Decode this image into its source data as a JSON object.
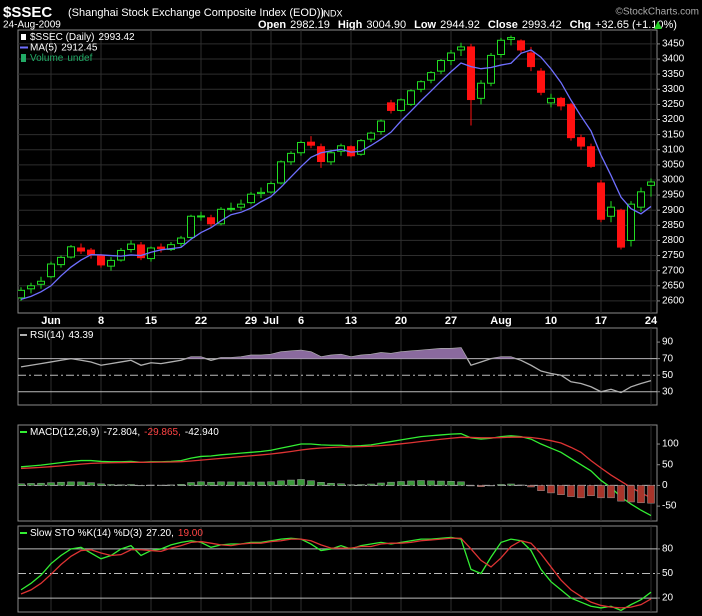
{
  "header": {
    "symbol": "$SSEC",
    "name": "(Shanghai Stock Exchange Composite Index (EOD))",
    "exchange": "INDX",
    "source": "©StockCharts.com",
    "date": "24-Aug-2009",
    "quote": [
      {
        "label": "Open",
        "value": "2982.19"
      },
      {
        "label": "High",
        "value": "3004.90"
      },
      {
        "label": "Low",
        "value": "2944.92"
      },
      {
        "label": "Close",
        "value": "2993.42"
      },
      {
        "label": "Chg",
        "value": "+32.65 (+1.10%)"
      }
    ]
  },
  "chart_data": [
    {
      "type": "candlestick",
      "categories": [
        null,
        null,
        null,
        "Jun",
        null,
        null,
        null,
        null,
        "8",
        null,
        null,
        null,
        null,
        "15",
        null,
        null,
        null,
        null,
        "22",
        null,
        null,
        null,
        null,
        "29",
        null,
        "Jul",
        null,
        null,
        "6",
        null,
        null,
        null,
        null,
        "13",
        null,
        null,
        null,
        null,
        "20",
        null,
        null,
        null,
        null,
        "27",
        null,
        null,
        null,
        null,
        "Aug",
        null,
        null,
        null,
        null,
        "10",
        null,
        null,
        null,
        null,
        "17",
        null,
        null,
        null,
        null,
        "24"
      ],
      "series": [
        {
          "name": "$SSEC (Daily)",
          "legend_value": "2993.42",
          "color": "#ffffff",
          "up_color": "#22dd22",
          "down_color": "#ff1111",
          "open": [
            2610,
            2640,
            2655,
            2680,
            2720,
            2745,
            2775,
            2768,
            2750,
            2715,
            2735,
            2770,
            2785,
            2740,
            2778,
            2770,
            2790,
            2810,
            2880,
            2875,
            2855,
            2905,
            2910,
            2925,
            2955,
            2960,
            2990,
            3060,
            3090,
            3125,
            3110,
            3060,
            3095,
            3110,
            3085,
            3135,
            3160,
            3255,
            3230,
            3250,
            3300,
            3330,
            3360,
            3395,
            3430,
            3440,
            3270,
            3320,
            3415,
            3465,
            3460,
            3420,
            3360,
            3255,
            3270,
            3250,
            3140,
            3110,
            2990,
            2880,
            2900,
            2800,
            2910,
            2982.19
          ],
          "high": [
            2645,
            2660,
            2680,
            2730,
            2750,
            2785,
            2790,
            2775,
            2755,
            2745,
            2775,
            2800,
            2795,
            2780,
            2790,
            2795,
            2815,
            2885,
            2895,
            2885,
            2910,
            2925,
            2935,
            2960,
            2975,
            2995,
            3065,
            3095,
            3130,
            3145,
            3120,
            3100,
            3120,
            3115,
            3135,
            3160,
            3200,
            3265,
            3270,
            3300,
            3330,
            3360,
            3400,
            3430,
            3454,
            3450,
            3330,
            3420,
            3470,
            3478,
            3465,
            3440,
            3370,
            3285,
            3275,
            3255,
            3150,
            3120,
            3000,
            2930,
            2905,
            2930,
            2975,
            3004.9
          ],
          "low": [
            2600,
            2625,
            2640,
            2675,
            2710,
            2740,
            2755,
            2740,
            2710,
            2700,
            2730,
            2760,
            2735,
            2730,
            2760,
            2765,
            2780,
            2805,
            2865,
            2845,
            2850,
            2895,
            2900,
            2920,
            2940,
            2955,
            2985,
            3050,
            3080,
            3105,
            3040,
            3050,
            3080,
            3075,
            3080,
            3125,
            3150,
            3220,
            3225,
            3245,
            3290,
            3320,
            3350,
            3380,
            3410,
            3180,
            3250,
            3310,
            3405,
            3445,
            3420,
            3360,
            3280,
            3240,
            3230,
            3130,
            3100,
            3040,
            2860,
            2860,
            2770,
            2780,
            2895,
            2944.92
          ],
          "close": [
            2635,
            2650,
            2665,
            2722,
            2744,
            2779,
            2765,
            2753,
            2719,
            2734,
            2767,
            2788,
            2743,
            2775,
            2773,
            2786,
            2808,
            2880,
            2881,
            2855,
            2903,
            2906,
            2920,
            2953,
            2959,
            2988,
            3060,
            3088,
            3124,
            3115,
            3061,
            3090,
            3113,
            3080,
            3130,
            3155,
            3195,
            3230,
            3265,
            3295,
            3325,
            3355,
            3395,
            3420,
            3440,
            3266,
            3320,
            3412,
            3462,
            3471,
            3430,
            3375,
            3290,
            3270,
            3245,
            3140,
            3112,
            3045,
            2870,
            2910,
            2778,
            2920,
            2960.77,
            2993.42
          ]
        },
        {
          "name": "MA(5)",
          "legend_value": "2912.45",
          "type": "line",
          "color": "#6f6fff",
          "values": [
            2605,
            2615,
            2630,
            2650,
            2683,
            2712,
            2735,
            2753,
            2752,
            2750,
            2748,
            2752,
            2750,
            2761,
            2769,
            2773,
            2777,
            2804,
            2826,
            2842,
            2865,
            2885,
            2893,
            2907,
            2928,
            2945,
            2976,
            3010,
            3044,
            3075,
            3090,
            3096,
            3101,
            3092,
            3095,
            3114,
            3135,
            3158,
            3195,
            3228,
            3262,
            3294,
            3327,
            3358,
            3387,
            3375,
            3368,
            3372,
            3380,
            3386,
            3419,
            3430,
            3406,
            3367,
            3322,
            3264,
            3211,
            3162,
            3082,
            3015,
            2943,
            2905,
            2888,
            2912.45
          ]
        }
      ],
      "legend_extra": {
        "name": "Volume",
        "value": "undef",
        "color": "#22aa66"
      },
      "ylim": [
        2560,
        3496
      ],
      "yticks": [
        2600,
        2650,
        2700,
        2750,
        2800,
        2850,
        2900,
        2950,
        3000,
        3050,
        3100,
        3150,
        3200,
        3250,
        3300,
        3350,
        3400,
        3450
      ],
      "grid": true
    },
    {
      "type": "indicator",
      "series": [
        {
          "name": "RSI(14)",
          "legend_value": "43.39",
          "legend_color": "#ffffff",
          "color": "#b0b0b0",
          "values": [
            60,
            62,
            64,
            66,
            68,
            70,
            68,
            66,
            62,
            64,
            66,
            68,
            62,
            65,
            64,
            66,
            68,
            72,
            72,
            68,
            71,
            71,
            72,
            74,
            74,
            75,
            78,
            79,
            80,
            78,
            72,
            74,
            75,
            72,
            74,
            75,
            77,
            76,
            78,
            79,
            80,
            81,
            82,
            82,
            83,
            62,
            66,
            70,
            72,
            72,
            68,
            62,
            55,
            52,
            50,
            42,
            40,
            36,
            30,
            33,
            29,
            36,
            40,
            43.39
          ]
        }
      ],
      "fill_above": 70,
      "fill_color": "#8a6a9e",
      "ylim": [
        14,
        107
      ],
      "yticks": [
        90,
        70,
        50,
        30
      ],
      "ref_lines": [
        {
          "value": 70,
          "style": "solid"
        },
        {
          "value": 50,
          "style": "dashdot"
        },
        {
          "value": 30,
          "style": "solid"
        }
      ]
    },
    {
      "type": "indicator",
      "series": [
        {
          "name": "MACD(12,26,9)",
          "legend_value": "-72.804,",
          "legend_color": "#ffffff",
          "color": "#33ee33",
          "values": [
            45,
            47,
            49,
            52,
            55,
            58,
            60,
            60,
            58,
            57,
            57,
            58,
            56,
            57,
            57,
            58,
            60,
            66,
            70,
            71,
            74,
            76,
            78,
            80,
            82,
            85,
            90,
            95,
            100,
            100,
            98,
            97,
            97,
            95,
            96,
            98,
            102,
            106,
            110,
            114,
            118,
            120,
            122,
            124,
            125,
            115,
            112,
            114,
            118,
            120,
            118,
            112,
            100,
            90,
            80,
            65,
            50,
            35,
            12,
            -5,
            -28,
            -45,
            -60,
            -72.804
          ]
        },
        {
          "legend_value": "-29.865,",
          "legend_color": "#ff4444",
          "color": "#dd3333",
          "values": [
            41,
            42.2,
            43.6,
            45.3,
            47.2,
            49.4,
            51.5,
            53.2,
            54.2,
            54.7,
            55.2,
            55.7,
            55.8,
            56,
            56.2,
            56.6,
            57.3,
            59,
            61.2,
            63.2,
            65.3,
            67.5,
            69.6,
            71.7,
            73.7,
            76,
            78.8,
            82,
            85.6,
            88.5,
            90.4,
            91.7,
            92.8,
            93.2,
            93.8,
            94.6,
            96.1,
            98.1,
            100.5,
            103.2,
            106.1,
            108.9,
            111.5,
            114,
            116.2,
            116,
            115.2,
            115,
            115.6,
            116.5,
            116.8,
            115.8,
            112.7,
            108.1,
            102.5,
            92,
            80,
            60,
            42,
            25,
            10,
            -5,
            -18,
            -29.865
          ]
        },
        {
          "legend_value": "-42.940",
          "legend_color": "#ffffff",
          "type": "histogram",
          "color": "#3a9a3a",
          "neg_color": "#a8342a",
          "values": [
            4,
            4.8,
            5.4,
            6.7,
            7.8,
            8.6,
            8.5,
            6.8,
            3.8,
            2.3,
            1.8,
            2.3,
            0.2,
            1,
            0.8,
            1.4,
            2.7,
            7,
            8.8,
            7.8,
            8.7,
            8.5,
            8.4,
            8.3,
            8.3,
            9,
            11.2,
            13,
            14.4,
            11.5,
            7.6,
            5.3,
            4.2,
            1.8,
            2.2,
            3.4,
            5.9,
            7.9,
            9.5,
            10.8,
            11.9,
            11.1,
            10.5,
            10,
            8.8,
            -1,
            -3.2,
            -1,
            2.4,
            3.5,
            1.2,
            -3.8,
            -12.7,
            -18.1,
            -22.5,
            -27,
            -30,
            -25,
            -30,
            -30,
            -38,
            -40,
            -42,
            -42.94
          ]
        }
      ],
      "ylim": [
        -86,
        146
      ],
      "yticks": [
        100,
        50,
        0,
        -50
      ],
      "ref_lines": [
        {
          "value": 0,
          "style": "dashdot"
        }
      ]
    },
    {
      "type": "indicator",
      "series": [
        {
          "name": "Slow STO %K(14) %D(3)",
          "legend_value": "27.20,",
          "legend_color": "#ffffff",
          "color": "#33ee33",
          "values": [
            30,
            38,
            48,
            62,
            72,
            80,
            82,
            75,
            68,
            72,
            80,
            84,
            72,
            78,
            80,
            85,
            88,
            90,
            88,
            82,
            85,
            86,
            86,
            88,
            88,
            90,
            92,
            93,
            92,
            86,
            78,
            80,
            84,
            80,
            84,
            86,
            88,
            86,
            88,
            90,
            92,
            92,
            93,
            94,
            92,
            55,
            50,
            70,
            88,
            92,
            90,
            78,
            55,
            40,
            30,
            20,
            15,
            10,
            8,
            10,
            5,
            12,
            18,
            27.2
          ]
        },
        {
          "legend_value": "19.00",
          "legend_color": "#ff4444",
          "color": "#dd3333",
          "values": [
            25,
            30,
            38,
            49,
            61,
            71,
            78,
            79,
            75,
            72,
            73,
            79,
            79,
            78,
            77,
            81,
            84,
            88,
            89,
            87,
            85,
            84,
            86,
            87,
            87,
            89,
            90,
            92,
            92,
            90,
            85,
            81,
            81,
            81,
            83,
            83,
            86,
            87,
            87,
            88,
            90,
            91,
            92,
            93,
            93,
            80,
            66,
            58,
            69,
            83,
            90,
            87,
            74,
            58,
            42,
            30,
            22,
            15,
            11,
            9,
            8,
            9,
            12,
            19
          ]
        }
      ],
      "ylim": [
        3,
        108
      ],
      "yticks": [
        80,
        50,
        20
      ],
      "ref_lines": [
        {
          "value": 80,
          "style": "solid"
        },
        {
          "value": 50,
          "style": "dashdot"
        },
        {
          "value": 20,
          "style": "solid"
        }
      ]
    }
  ]
}
